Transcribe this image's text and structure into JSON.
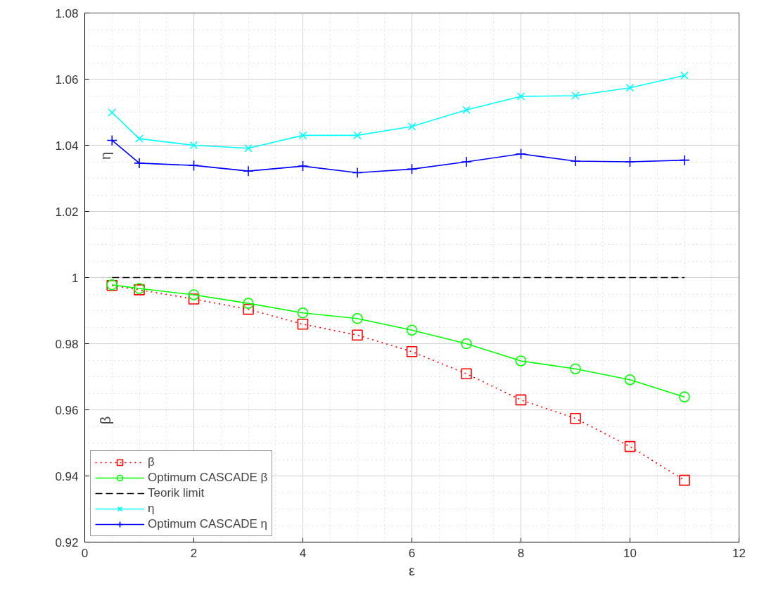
{
  "chart_data": {
    "type": "line",
    "xlabel": "ε",
    "ylabel": "η",
    "annotations": [
      "β"
    ],
    "x": [
      0.5,
      1,
      2,
      3,
      4,
      5,
      6,
      7,
      8,
      9,
      10,
      11
    ],
    "series": [
      {
        "name": "β",
        "color": "#ff0000",
        "marker": "square",
        "line_style": "dotted",
        "values": [
          0.9976,
          0.9963,
          0.9935,
          0.9904,
          0.9859,
          0.9826,
          0.9776,
          0.9709,
          0.963,
          0.9574,
          0.9489,
          0.9387
        ]
      },
      {
        "name": "Optimum CASCADE β",
        "color": "#00ff00",
        "marker": "circle",
        "line_style": "solid",
        "values": [
          0.9978,
          0.9967,
          0.9948,
          0.9922,
          0.9893,
          0.9876,
          0.9841,
          0.98,
          0.9748,
          0.9724,
          0.9691,
          0.9639
        ]
      },
      {
        "name": "Teorik limit",
        "color": "#000000",
        "marker": "none",
        "line_style": "dashed",
        "x": [
          0.5,
          11
        ],
        "values": [
          1.0,
          1.0
        ]
      },
      {
        "name": "η",
        "color": "#00ffff",
        "marker": "x",
        "line_style": "solid",
        "values": [
          1.0499,
          1.042,
          1.04,
          1.0391,
          1.043,
          1.043,
          1.0457,
          1.0507,
          1.0548,
          1.055,
          1.0574,
          1.0611
        ]
      },
      {
        "name": "Optimum CASCADE η",
        "color": "#0000ff",
        "marker": "cross",
        "line_style": "solid",
        "values": [
          1.0415,
          1.0346,
          1.0339,
          1.0322,
          1.0337,
          1.0317,
          1.0328,
          1.035,
          1.0374,
          1.0352,
          1.035,
          1.0355
        ]
      }
    ],
    "xlim": [
      0,
      12
    ],
    "ylim": [
      0.92,
      1.08
    ],
    "xticks": [
      0,
      2,
      4,
      6,
      8,
      10,
      12
    ],
    "yticks": [
      0.92,
      0.94,
      0.96,
      0.98,
      {
        "value": 1,
        "label": "1"
      },
      1.02,
      1.04,
      1.06,
      1.08
    ],
    "grid": true,
    "legend": "bottom left"
  }
}
